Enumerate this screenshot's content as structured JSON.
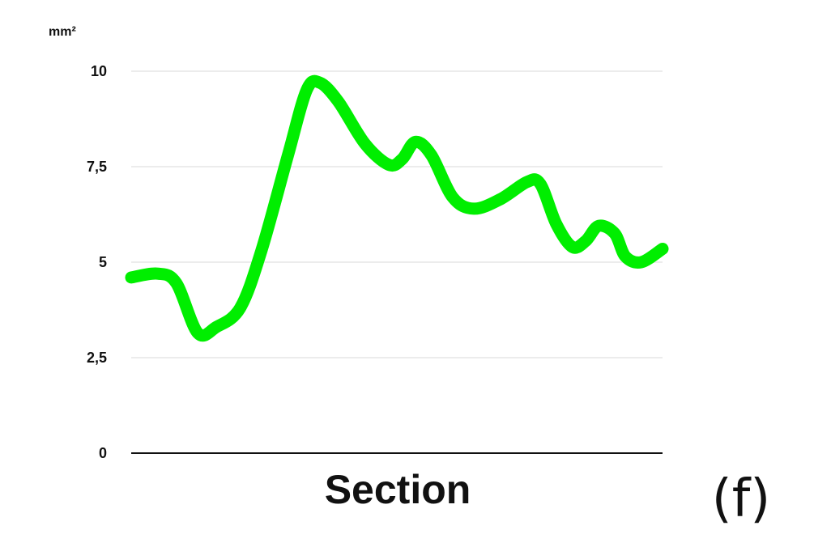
{
  "chart_data": {
    "type": "line",
    "unit_label": "mm²",
    "xlabel": "Section",
    "panel_label": "(f)",
    "ylim": [
      0,
      10
    ],
    "y_ticks": [
      {
        "value": 0,
        "label": "0"
      },
      {
        "value": 2.5,
        "label": "2,5"
      },
      {
        "value": 5,
        "label": "5"
      },
      {
        "value": 7.5,
        "label": "7,5"
      },
      {
        "value": 10,
        "label": "10"
      }
    ],
    "grid": true,
    "series": [
      {
        "color": "#00ee00",
        "points": [
          [
            0,
            4.6
          ],
          [
            0.5,
            4.7
          ],
          [
            0.85,
            4.45
          ],
          [
            1.25,
            3.15
          ],
          [
            1.6,
            3.3
          ],
          [
            2.05,
            3.8
          ],
          [
            2.45,
            5.3
          ],
          [
            2.95,
            7.8
          ],
          [
            3.3,
            9.5
          ],
          [
            3.55,
            9.7
          ],
          [
            3.9,
            9.2
          ],
          [
            4.4,
            8.1
          ],
          [
            4.85,
            7.55
          ],
          [
            5.1,
            7.7
          ],
          [
            5.35,
            8.15
          ],
          [
            5.65,
            7.8
          ],
          [
            6.05,
            6.7
          ],
          [
            6.45,
            6.4
          ],
          [
            6.95,
            6.65
          ],
          [
            7.45,
            7.1
          ],
          [
            7.7,
            7.05
          ],
          [
            8.0,
            6.0
          ],
          [
            8.3,
            5.4
          ],
          [
            8.55,
            5.55
          ],
          [
            8.8,
            5.95
          ],
          [
            9.1,
            5.75
          ],
          [
            9.3,
            5.15
          ],
          [
            9.6,
            5.0
          ],
          [
            10.0,
            5.35
          ]
        ]
      }
    ]
  }
}
